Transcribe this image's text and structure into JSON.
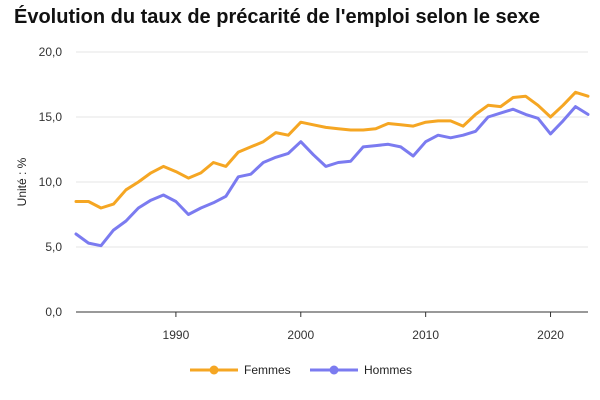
{
  "chart_data": {
    "type": "line",
    "title": "Évolution du taux de précarité de l'emploi selon le sexe",
    "xlabel": "",
    "ylabel": "Unité : %",
    "ylim": [
      0,
      20
    ],
    "xlim": [
      1982,
      2023
    ],
    "yticks": [
      "0,0",
      "5,0",
      "10,0",
      "15,0",
      "20,0"
    ],
    "xticks": [
      "1990",
      "2000",
      "2010",
      "2020"
    ],
    "grid": true,
    "legend_position": "bottom",
    "x": [
      1982,
      1983,
      1984,
      1985,
      1986,
      1987,
      1988,
      1989,
      1990,
      1991,
      1992,
      1993,
      1994,
      1995,
      1996,
      1997,
      1998,
      1999,
      2000,
      2001,
      2002,
      2003,
      2004,
      2005,
      2006,
      2007,
      2008,
      2009,
      2010,
      2011,
      2012,
      2013,
      2014,
      2015,
      2016,
      2017,
      2018,
      2019,
      2020,
      2021,
      2022,
      2023
    ],
    "series": [
      {
        "name": "Femmes",
        "color": "#f5a623",
        "values": [
          8.5,
          8.5,
          8.0,
          8.3,
          9.4,
          10.0,
          10.7,
          11.2,
          10.8,
          10.3,
          10.7,
          11.5,
          11.2,
          12.3,
          12.7,
          13.1,
          13.8,
          13.6,
          14.6,
          14.4,
          14.2,
          14.1,
          14.0,
          14.0,
          14.1,
          14.5,
          14.4,
          14.3,
          14.6,
          14.7,
          14.7,
          14.3,
          15.2,
          15.9,
          15.8,
          16.5,
          16.6,
          15.9,
          15.0,
          15.9,
          16.9,
          16.6
        ]
      },
      {
        "name": "Hommes",
        "color": "#7b7bf0",
        "values": [
          6.0,
          5.3,
          5.1,
          6.3,
          7.0,
          8.0,
          8.6,
          9.0,
          8.5,
          7.5,
          8.0,
          8.4,
          8.9,
          10.4,
          10.6,
          11.5,
          11.9,
          12.2,
          13.1,
          12.1,
          11.2,
          11.5,
          11.6,
          12.7,
          12.8,
          12.9,
          12.7,
          12.0,
          13.1,
          13.6,
          13.4,
          13.6,
          13.9,
          15.0,
          15.3,
          15.6,
          15.2,
          14.9,
          13.7,
          14.7,
          15.8,
          15.2
        ]
      }
    ]
  }
}
